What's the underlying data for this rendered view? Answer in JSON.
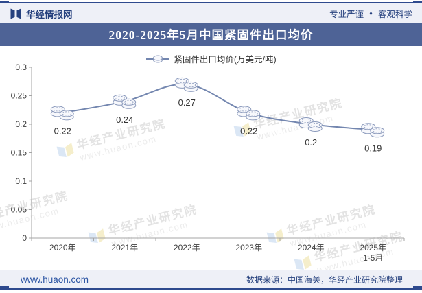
{
  "header": {
    "brand": "华经情报网",
    "tagline_left": "专业严谨",
    "tagline_separator": "●",
    "tagline_right": "客观科学"
  },
  "title": "2020-2025年5月中国紧固件出口均价",
  "chart_data": {
    "type": "line",
    "title": "2020-2025年5月中国紧固件出口均价",
    "categories": [
      "2020年",
      "2021年",
      "2022年",
      "2023年",
      "2024年",
      "2025年\n1-5月"
    ],
    "series": [
      {
        "name": "紧固件出口均价(万美元/吨)",
        "values": [
          0.22,
          0.24,
          0.27,
          0.22,
          0.2,
          0.19
        ]
      }
    ],
    "value_labels": [
      "0.22",
      "0.24",
      "0.27",
      "0.22",
      "0.2",
      "0.19"
    ],
    "xlabel": "",
    "ylabel": "",
    "ylim": [
      0,
      0.3
    ],
    "yticks": [
      0,
      0.05,
      0.1,
      0.15,
      0.2,
      0.25,
      0.3
    ],
    "grid": false,
    "legend_position": "top",
    "line_color": "#7386af",
    "marker_style": "coin-stack",
    "marker_fill": "#f7f8fc",
    "marker_stroke": "#8b9abc",
    "axis_color": "#a6a6a6"
  },
  "watermark": {
    "line1": "华经产业研究院",
    "line2": "www.huaon.com"
  },
  "footer": {
    "site": "www.huaon.com",
    "source": "数据来源：中国海关，华经产业研究院整理"
  }
}
